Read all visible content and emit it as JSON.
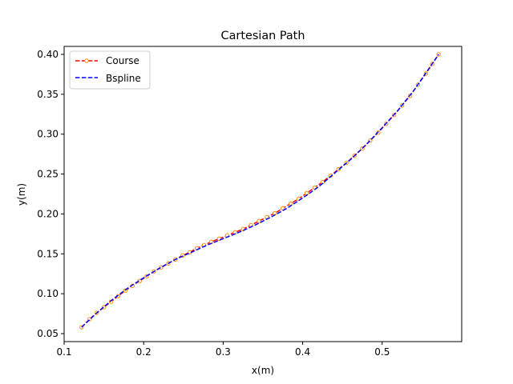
{
  "chart_data": {
    "type": "line",
    "title": "Cartesian Path",
    "xlabel": "x(m)",
    "ylabel": "y(m)",
    "xlim": [
      0.1,
      0.6
    ],
    "ylim": [
      0.04,
      0.41
    ],
    "xticks": [
      0.1,
      0.2,
      0.3,
      0.4,
      0.5
    ],
    "yticks": [
      0.05,
      0.1,
      0.15,
      0.2,
      0.25,
      0.3,
      0.35,
      0.4
    ],
    "xtick_labels": [
      "0.1",
      "0.2",
      "0.3",
      "0.4",
      "0.5"
    ],
    "ytick_labels": [
      "0.05",
      "0.10",
      "0.15",
      "0.20",
      "0.25",
      "0.30",
      "0.35",
      "0.40"
    ],
    "grid": false,
    "legend_position": "top-left",
    "series": [
      {
        "name": "Course",
        "color": "#ff0000",
        "marker_color": "#ff8c00",
        "style": "dashed-with-circle-markers",
        "x": [
          0.122,
          0.132,
          0.141,
          0.15,
          0.159,
          0.168,
          0.177,
          0.186,
          0.195,
          0.204,
          0.213,
          0.222,
          0.231,
          0.24,
          0.249,
          0.258,
          0.267,
          0.276,
          0.285,
          0.295,
          0.305,
          0.315,
          0.325,
          0.335,
          0.345,
          0.355,
          0.365,
          0.375,
          0.385,
          0.395,
          0.405,
          0.415,
          0.425,
          0.435,
          0.445,
          0.455,
          0.465,
          0.475,
          0.485,
          0.495,
          0.505,
          0.515,
          0.525,
          0.535,
          0.545,
          0.555,
          0.563,
          0.571
        ],
        "y": [
          0.058,
          0.068,
          0.076,
          0.083,
          0.09,
          0.097,
          0.104,
          0.11,
          0.116,
          0.122,
          0.128,
          0.133,
          0.138,
          0.143,
          0.148,
          0.152,
          0.157,
          0.161,
          0.165,
          0.169,
          0.173,
          0.177,
          0.181,
          0.186,
          0.191,
          0.196,
          0.201,
          0.207,
          0.213,
          0.219,
          0.226,
          0.233,
          0.24,
          0.248,
          0.256,
          0.264,
          0.273,
          0.282,
          0.292,
          0.302,
          0.313,
          0.324,
          0.336,
          0.348,
          0.362,
          0.376,
          0.388,
          0.4
        ]
      },
      {
        "name": "Bspline",
        "color": "#0000ff",
        "style": "dashed",
        "x": [
          0.122,
          0.14,
          0.16,
          0.18,
          0.2,
          0.22,
          0.24,
          0.26,
          0.28,
          0.3,
          0.32,
          0.34,
          0.36,
          0.38,
          0.4,
          0.42,
          0.44,
          0.46,
          0.48,
          0.5,
          0.52,
          0.54,
          0.56,
          0.571
        ],
        "y": [
          0.058,
          0.075,
          0.092,
          0.107,
          0.12,
          0.132,
          0.143,
          0.152,
          0.161,
          0.169,
          0.177,
          0.186,
          0.196,
          0.207,
          0.22,
          0.234,
          0.251,
          0.268,
          0.287,
          0.308,
          0.33,
          0.355,
          0.384,
          0.4
        ]
      }
    ]
  }
}
